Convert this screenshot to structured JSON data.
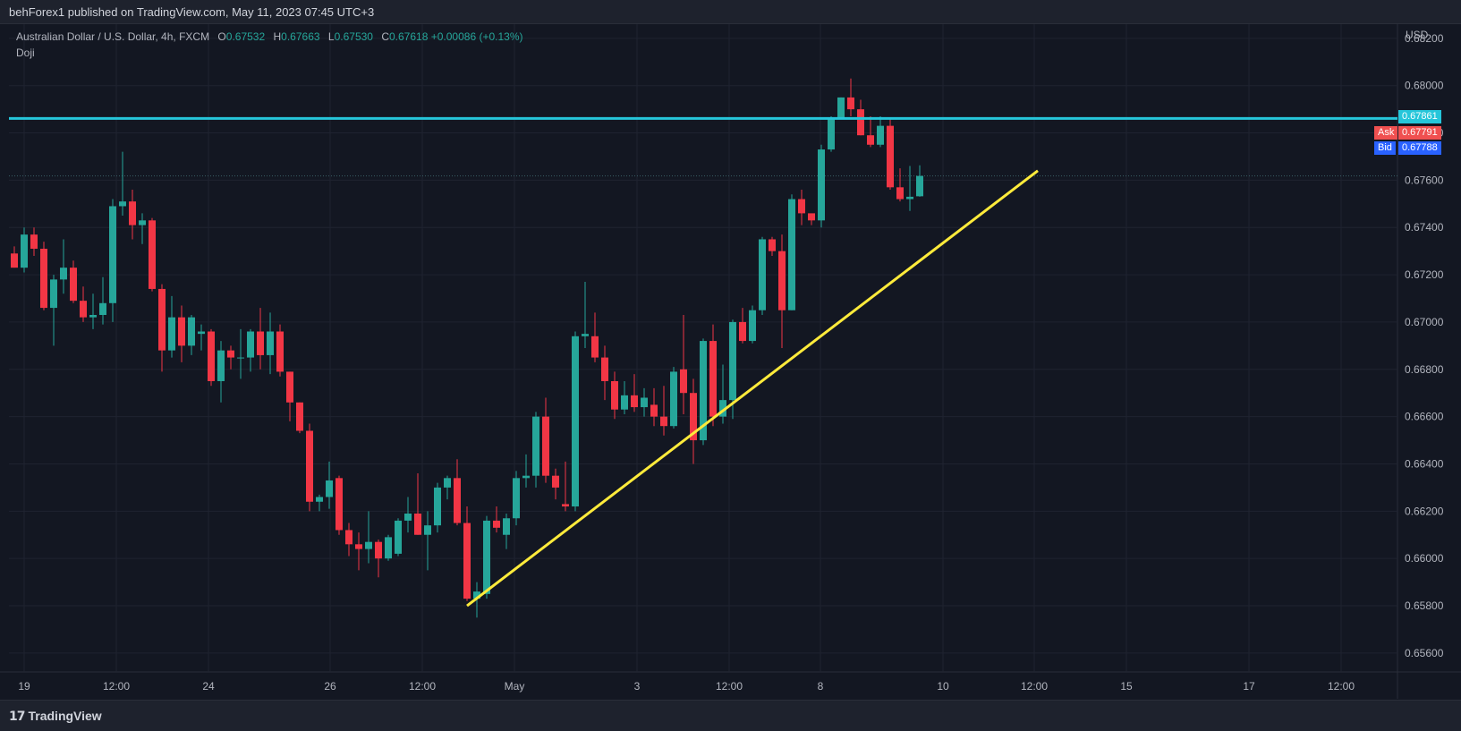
{
  "header": {
    "published_text": "behForex1 published on TradingView.com, May 11, 2023 07:45 UTC+3"
  },
  "footer": {
    "brand": "TradingView",
    "logo_icon": "tradingview-logo-icon"
  },
  "legend": {
    "symbol": "Australian Dollar / U.S. Dollar, 4h, FXCM",
    "open_label": "O",
    "open": "0.67532",
    "high_label": "H",
    "high": "0.67663",
    "low_label": "L",
    "low": "0.67530",
    "close_label": "C",
    "close": "0.67618",
    "change": "+0.00086 (+0.13%)",
    "indicator": "Doji"
  },
  "colors": {
    "up": "#26a69a",
    "down": "#f23645",
    "background": "#131722",
    "hline": "#26c6da",
    "trendline": "#ffeb3b",
    "ask": "#f05050",
    "bid": "#2962ff"
  },
  "price_axis": {
    "currency": "USD",
    "ticks": [
      "0.68200",
      "0.68000",
      "0.67800",
      "0.67600",
      "0.67400",
      "0.67200",
      "0.67000",
      "0.66800",
      "0.66600",
      "0.66400",
      "0.66200",
      "0.66000",
      "0.65800",
      "0.65600"
    ]
  },
  "time_axis": {
    "ticks": [
      "19",
      "12:00",
      "24",
      "26",
      "12:00",
      "May",
      "3",
      "12:00",
      "8",
      "10",
      "12:00",
      "15",
      "17",
      "12:00"
    ]
  },
  "price_tags": {
    "hline": "0.67861",
    "ask_label": "Ask",
    "ask": "0.67791",
    "bid_label": "Bid",
    "bid": "0.67788"
  },
  "chart_data": {
    "type": "candlestick",
    "title": "Australian Dollar / U.S. Dollar, 4h, FXCM",
    "ylim": [
      0.6552,
      0.6826
    ],
    "grid": true,
    "horizontal_line": 0.67861,
    "last_price": 0.67618,
    "trendline": {
      "start": {
        "candle_index": 46,
        "price": 0.658
      },
      "end": {
        "x_after_last_candle_index": 104,
        "price": 0.6764
      }
    },
    "candles": [
      {
        "o": 0.6729,
        "h": 0.6732,
        "l": 0.6723,
        "c": 0.6723
      },
      {
        "o": 0.6723,
        "h": 0.674,
        "l": 0.6721,
        "c": 0.6737
      },
      {
        "o": 0.6737,
        "h": 0.674,
        "l": 0.6728,
        "c": 0.6731
      },
      {
        "o": 0.6731,
        "h": 0.6734,
        "l": 0.6705,
        "c": 0.6706
      },
      {
        "o": 0.6706,
        "h": 0.672,
        "l": 0.669,
        "c": 0.6718
      },
      {
        "o": 0.6718,
        "h": 0.6735,
        "l": 0.6712,
        "c": 0.6723
      },
      {
        "o": 0.6723,
        "h": 0.6726,
        "l": 0.6708,
        "c": 0.6709
      },
      {
        "o": 0.6709,
        "h": 0.6715,
        "l": 0.67,
        "c": 0.6702
      },
      {
        "o": 0.6702,
        "h": 0.6712,
        "l": 0.6697,
        "c": 0.6703
      },
      {
        "o": 0.6703,
        "h": 0.6719,
        "l": 0.6699,
        "c": 0.6708
      },
      {
        "o": 0.6708,
        "h": 0.6752,
        "l": 0.67,
        "c": 0.6749
      },
      {
        "o": 0.6749,
        "h": 0.6772,
        "l": 0.6745,
        "c": 0.6751
      },
      {
        "o": 0.6751,
        "h": 0.6756,
        "l": 0.6735,
        "c": 0.6741
      },
      {
        "o": 0.6741,
        "h": 0.6746,
        "l": 0.6733,
        "c": 0.6743
      },
      {
        "o": 0.6743,
        "h": 0.6744,
        "l": 0.6713,
        "c": 0.6714
      },
      {
        "o": 0.6714,
        "h": 0.6716,
        "l": 0.6679,
        "c": 0.6688
      },
      {
        "o": 0.6688,
        "h": 0.6711,
        "l": 0.6685,
        "c": 0.6702
      },
      {
        "o": 0.6702,
        "h": 0.6707,
        "l": 0.6683,
        "c": 0.669
      },
      {
        "o": 0.669,
        "h": 0.6703,
        "l": 0.6686,
        "c": 0.6702
      },
      {
        "o": 0.6695,
        "h": 0.6699,
        "l": 0.6688,
        "c": 0.6696
      },
      {
        "o": 0.6696,
        "h": 0.6697,
        "l": 0.6673,
        "c": 0.6675
      },
      {
        "o": 0.6675,
        "h": 0.6692,
        "l": 0.6666,
        "c": 0.6688
      },
      {
        "o": 0.6688,
        "h": 0.669,
        "l": 0.668,
        "c": 0.6685
      },
      {
        "o": 0.6685,
        "h": 0.6697,
        "l": 0.6676,
        "c": 0.6685
      },
      {
        "o": 0.6685,
        "h": 0.6697,
        "l": 0.6679,
        "c": 0.6696
      },
      {
        "o": 0.6696,
        "h": 0.6706,
        "l": 0.668,
        "c": 0.6686
      },
      {
        "o": 0.6686,
        "h": 0.6704,
        "l": 0.6678,
        "c": 0.6696
      },
      {
        "o": 0.6696,
        "h": 0.6699,
        "l": 0.6677,
        "c": 0.6679
      },
      {
        "o": 0.6679,
        "h": 0.6679,
        "l": 0.6658,
        "c": 0.6666
      },
      {
        "o": 0.6666,
        "h": 0.6666,
        "l": 0.6653,
        "c": 0.6654
      },
      {
        "o": 0.6654,
        "h": 0.6657,
        "l": 0.662,
        "c": 0.6624
      },
      {
        "o": 0.6624,
        "h": 0.6627,
        "l": 0.662,
        "c": 0.6626
      },
      {
        "o": 0.6626,
        "h": 0.6641,
        "l": 0.6621,
        "c": 0.6633
      },
      {
        "o": 0.6634,
        "h": 0.6635,
        "l": 0.661,
        "c": 0.6612
      },
      {
        "o": 0.6612,
        "h": 0.6615,
        "l": 0.6601,
        "c": 0.6606
      },
      {
        "o": 0.6606,
        "h": 0.6611,
        "l": 0.6595,
        "c": 0.6604
      },
      {
        "o": 0.6604,
        "h": 0.662,
        "l": 0.6598,
        "c": 0.6607
      },
      {
        "o": 0.6607,
        "h": 0.6608,
        "l": 0.6592,
        "c": 0.66
      },
      {
        "o": 0.66,
        "h": 0.661,
        "l": 0.6599,
        "c": 0.6609
      },
      {
        "o": 0.6602,
        "h": 0.6617,
        "l": 0.6601,
        "c": 0.6616
      },
      {
        "o": 0.6616,
        "h": 0.6626,
        "l": 0.6611,
        "c": 0.6619
      },
      {
        "o": 0.6619,
        "h": 0.6636,
        "l": 0.661,
        "c": 0.661
      },
      {
        "o": 0.661,
        "h": 0.662,
        "l": 0.6595,
        "c": 0.6614
      },
      {
        "o": 0.6614,
        "h": 0.6632,
        "l": 0.6611,
        "c": 0.663
      },
      {
        "o": 0.663,
        "h": 0.6635,
        "l": 0.6625,
        "c": 0.6634
      },
      {
        "o": 0.6634,
        "h": 0.6642,
        "l": 0.6614,
        "c": 0.6615
      },
      {
        "o": 0.6615,
        "h": 0.6622,
        "l": 0.6582,
        "c": 0.6583
      },
      {
        "o": 0.6583,
        "h": 0.659,
        "l": 0.6575,
        "c": 0.6586
      },
      {
        "o": 0.6585,
        "h": 0.6618,
        "l": 0.6583,
        "c": 0.6616
      },
      {
        "o": 0.6616,
        "h": 0.6622,
        "l": 0.6611,
        "c": 0.6613
      },
      {
        "o": 0.661,
        "h": 0.6619,
        "l": 0.6604,
        "c": 0.6617
      },
      {
        "o": 0.6617,
        "h": 0.6637,
        "l": 0.6614,
        "c": 0.6634
      },
      {
        "o": 0.6634,
        "h": 0.6644,
        "l": 0.663,
        "c": 0.6635
      },
      {
        "o": 0.6635,
        "h": 0.6662,
        "l": 0.663,
        "c": 0.666
      },
      {
        "o": 0.666,
        "h": 0.6668,
        "l": 0.6632,
        "c": 0.6635
      },
      {
        "o": 0.6635,
        "h": 0.6638,
        "l": 0.6625,
        "c": 0.663
      },
      {
        "o": 0.6623,
        "h": 0.6641,
        "l": 0.662,
        "c": 0.6622
      },
      {
        "o": 0.6622,
        "h": 0.6696,
        "l": 0.662,
        "c": 0.6694
      },
      {
        "o": 0.6694,
        "h": 0.6717,
        "l": 0.6689,
        "c": 0.6695
      },
      {
        "o": 0.6694,
        "h": 0.6704,
        "l": 0.6683,
        "c": 0.6685
      },
      {
        "o": 0.6685,
        "h": 0.669,
        "l": 0.6667,
        "c": 0.6675
      },
      {
        "o": 0.6675,
        "h": 0.6679,
        "l": 0.6659,
        "c": 0.6663
      },
      {
        "o": 0.6663,
        "h": 0.6675,
        "l": 0.6661,
        "c": 0.6669
      },
      {
        "o": 0.6669,
        "h": 0.6678,
        "l": 0.6662,
        "c": 0.6664
      },
      {
        "o": 0.6664,
        "h": 0.6672,
        "l": 0.666,
        "c": 0.6668
      },
      {
        "o": 0.6665,
        "h": 0.6672,
        "l": 0.6656,
        "c": 0.666
      },
      {
        "o": 0.666,
        "h": 0.6673,
        "l": 0.6652,
        "c": 0.6656
      },
      {
        "o": 0.6656,
        "h": 0.6681,
        "l": 0.6655,
        "c": 0.6679
      },
      {
        "o": 0.668,
        "h": 0.6703,
        "l": 0.6661,
        "c": 0.667
      },
      {
        "o": 0.667,
        "h": 0.6676,
        "l": 0.664,
        "c": 0.665
      },
      {
        "o": 0.665,
        "h": 0.6693,
        "l": 0.6648,
        "c": 0.6692
      },
      {
        "o": 0.6692,
        "h": 0.6699,
        "l": 0.6656,
        "c": 0.666
      },
      {
        "o": 0.666,
        "h": 0.6682,
        "l": 0.6657,
        "c": 0.6667
      },
      {
        "o": 0.6667,
        "h": 0.6701,
        "l": 0.6659,
        "c": 0.67
      },
      {
        "o": 0.67,
        "h": 0.6706,
        "l": 0.6691,
        "c": 0.6692
      },
      {
        "o": 0.6692,
        "h": 0.6707,
        "l": 0.6691,
        "c": 0.6705
      },
      {
        "o": 0.6705,
        "h": 0.6736,
        "l": 0.6703,
        "c": 0.6735
      },
      {
        "o": 0.6735,
        "h": 0.6736,
        "l": 0.6728,
        "c": 0.673
      },
      {
        "o": 0.673,
        "h": 0.6737,
        "l": 0.6689,
        "c": 0.6705
      },
      {
        "o": 0.6705,
        "h": 0.6754,
        "l": 0.6705,
        "c": 0.6752
      },
      {
        "o": 0.6752,
        "h": 0.6756,
        "l": 0.6741,
        "c": 0.6746
      },
      {
        "o": 0.6746,
        "h": 0.6745,
        "l": 0.6741,
        "c": 0.6743
      },
      {
        "o": 0.6743,
        "h": 0.6775,
        "l": 0.674,
        "c": 0.6773
      },
      {
        "o": 0.6773,
        "h": 0.6787,
        "l": 0.6772,
        "c": 0.6786
      },
      {
        "o": 0.6786,
        "h": 0.6795,
        "l": 0.6786,
        "c": 0.6795
      },
      {
        "o": 0.6795,
        "h": 0.6803,
        "l": 0.6787,
        "c": 0.679
      },
      {
        "o": 0.679,
        "h": 0.6794,
        "l": 0.6779,
        "c": 0.6779
      },
      {
        "o": 0.6779,
        "h": 0.6787,
        "l": 0.6774,
        "c": 0.6775
      },
      {
        "o": 0.6775,
        "h": 0.6787,
        "l": 0.6774,
        "c": 0.6783
      },
      {
        "o": 0.6783,
        "h": 0.6786,
        "l": 0.6756,
        "c": 0.6757
      },
      {
        "o": 0.6757,
        "h": 0.6765,
        "l": 0.6751,
        "c": 0.6752
      },
      {
        "o": 0.6752,
        "h": 0.6766,
        "l": 0.6747,
        "c": 0.6753
      },
      {
        "o": 0.67532,
        "h": 0.67663,
        "l": 0.6753,
        "c": 0.67618
      }
    ]
  }
}
